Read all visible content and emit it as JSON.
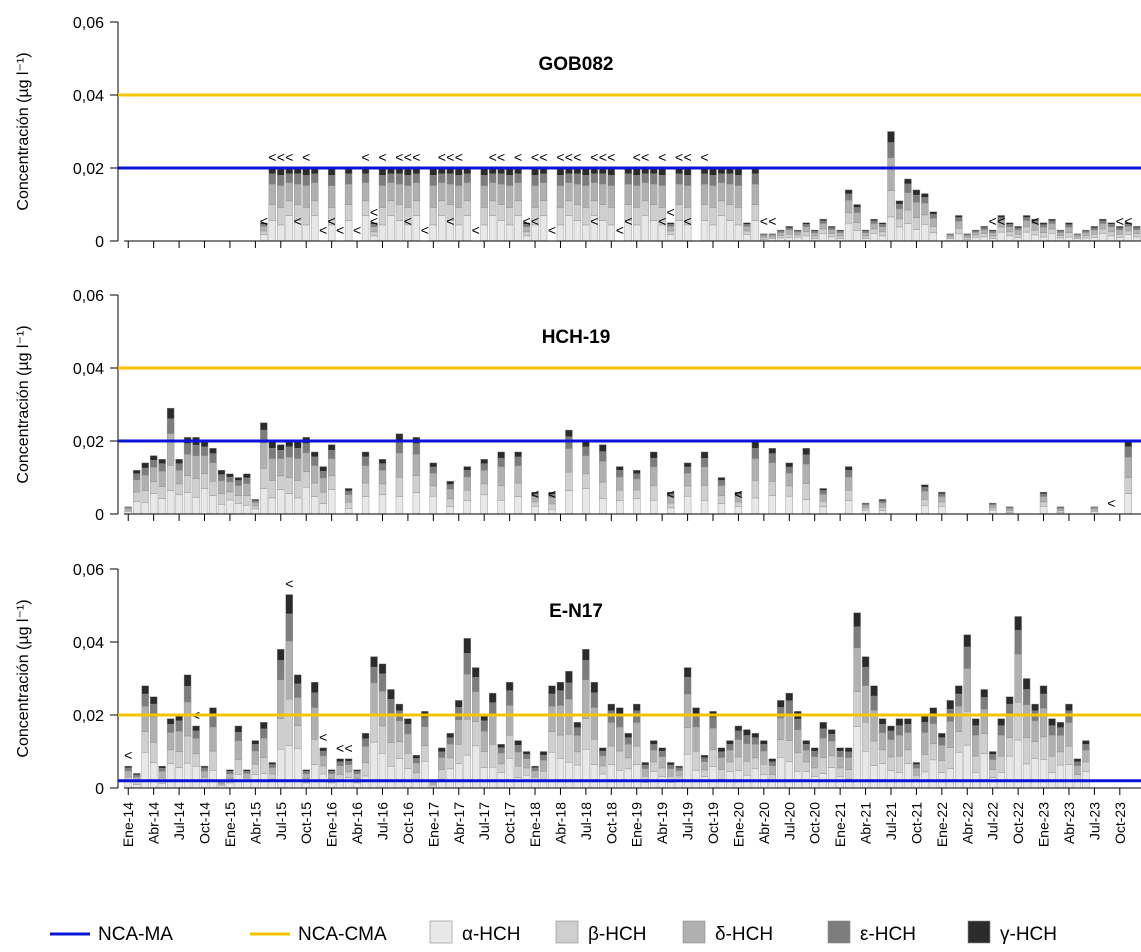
{
  "legend": {
    "ma": "NCA-MA",
    "cma": "NCA-CMA"
  },
  "chart_data": {
    "type": "bar",
    "stacked": true,
    "ylabel": "Concentración (µg l⁻¹)",
    "yticks": [
      "0",
      "0,02",
      "0,04",
      "0,06"
    ],
    "ylim": [
      0,
      0.06
    ],
    "x_tick_labels": [
      "Ene-14",
      "Abr-14",
      "Jul-14",
      "Oct-14",
      "Ene-15",
      "Abr-15",
      "Jul-15",
      "Oct-15",
      "Ene-16",
      "Abr-16",
      "Jul-16",
      "Oct-16",
      "Ene-17",
      "Abr-17",
      "Jul-17",
      "Oct-17",
      "Ene-18",
      "Abr-18",
      "Jul-18",
      "Oct-18",
      "Ene-19",
      "Abr-19",
      "Jul-19",
      "Oct-19",
      "Ene-20",
      "Abr-20",
      "Jul-20",
      "Oct-20",
      "Ene-21",
      "Abr-21",
      "Jul-21",
      "Oct-21",
      "Ene-22",
      "Abr-22",
      "Jul-22",
      "Oct-22",
      "Ene-23",
      "Abr-23",
      "Jul-23",
      "Oct-23"
    ],
    "series_names": [
      "α-HCH",
      "β-HCH",
      "δ-HCH",
      "ε-HCH",
      "γ-HCH"
    ],
    "colors": {
      "alpha": "#e8e8e8",
      "beta": "#cfcfcf",
      "delta": "#b0b0b0",
      "epsilon": "#7d7d7d",
      "gamma": "#2b2b2b",
      "ma": "#0a14d6",
      "cma": "#f5c400"
    },
    "panels": [
      {
        "title": "GOB082",
        "ma": 0.02,
        "cma": 0.04,
        "lt_marker": "<",
        "totals": [
          0,
          0,
          0,
          0,
          0,
          0,
          0,
          0,
          0,
          0,
          0,
          0,
          0,
          0,
          0,
          0,
          0.005,
          0.02,
          0.02,
          0.02,
          0.02,
          0.02,
          0.02,
          0,
          0.02,
          0,
          0.02,
          0,
          0.02,
          0.005,
          0.02,
          0.02,
          0.02,
          0.02,
          0.02,
          0,
          0.02,
          0.02,
          0.02,
          0.02,
          0.02,
          0,
          0.02,
          0.02,
          0.02,
          0.02,
          0.02,
          0.005,
          0.02,
          0.02,
          0,
          0.02,
          0.02,
          0.02,
          0.02,
          0.02,
          0.02,
          0.02,
          0,
          0.02,
          0.02,
          0.02,
          0.02,
          0.02,
          0.005,
          0.02,
          0.02,
          0,
          0.02,
          0.02,
          0.02,
          0.02,
          0.02,
          0.005,
          0.02,
          0.002,
          0.002,
          0.003,
          0.004,
          0.003,
          0.005,
          0.003,
          0.006,
          0.004,
          0.003,
          0.014,
          0.01,
          0.003,
          0.006,
          0.005,
          0.03,
          0.011,
          0.017,
          0.014,
          0.013,
          0.008,
          0,
          0.002,
          0.007,
          0.002,
          0.003,
          0.004,
          0.003,
          0.007,
          0.005,
          0.004,
          0.007,
          0.006,
          0.005,
          0.006,
          0.003,
          0.005,
          0.002,
          0.003,
          0.004,
          0.006,
          0.005,
          0.004,
          0.005,
          0.004,
          0.007,
          0.006,
          0.004,
          0.003,
          0.004,
          0.007,
          0.003,
          0.004,
          0.002,
          0.002,
          0.002,
          0.004,
          0.003,
          0.005,
          0.008,
          0,
          0.007,
          0.005,
          0.003,
          0.002
        ],
        "lt_upper": [
          17,
          18,
          19,
          21,
          23,
          25,
          27,
          28,
          29,
          30,
          32,
          33,
          34,
          35,
          37,
          38,
          39,
          41,
          43,
          44,
          46,
          48,
          49,
          50,
          51,
          52,
          53,
          55,
          56,
          57,
          58,
          60,
          61,
          63,
          64,
          65,
          66,
          68
        ],
        "lt_lower": [
          16,
          20,
          24,
          29,
          33,
          38,
          47,
          48,
          55,
          59,
          63,
          66,
          75,
          76,
          102,
          103,
          107,
          117,
          118,
          144
        ]
      },
      {
        "title": "HCH-19",
        "ma": 0.02,
        "cma": 0.04,
        "lt_marker": "<",
        "totals": [
          0.002,
          0.012,
          0.014,
          0.016,
          0.015,
          0.029,
          0.015,
          0.021,
          0.021,
          0.02,
          0.018,
          0.012,
          0.011,
          0.01,
          0.011,
          0.004,
          0.025,
          0.02,
          0.019,
          0.02,
          0.02,
          0.021,
          0.017,
          0.013,
          0.019,
          0,
          0.007,
          0,
          0.017,
          0,
          0.015,
          0,
          0.022,
          0,
          0.021,
          0,
          0.014,
          0,
          0.009,
          0,
          0.013,
          0,
          0.015,
          0,
          0.017,
          0,
          0.017,
          0,
          0.006,
          0,
          0.006,
          0,
          0.023,
          0,
          0.02,
          0,
          0.019,
          0,
          0.013,
          0,
          0.012,
          0,
          0.017,
          0,
          0.006,
          0,
          0.014,
          0,
          0.017,
          0,
          0.01,
          0,
          0.006,
          0,
          0.02,
          0,
          0.018,
          0,
          0.014,
          0,
          0.018,
          0,
          0.007,
          0,
          0,
          0.013,
          0,
          0.003,
          0,
          0.004,
          0,
          0,
          0,
          0,
          0.008,
          0,
          0.006,
          0,
          0,
          0,
          0,
          0,
          0.003,
          0,
          0.002,
          0,
          0,
          0,
          0.006,
          0,
          0.002,
          0,
          0,
          0,
          0.002,
          0,
          0,
          0,
          0.02,
          0,
          0,
          0.008,
          0,
          0.008
        ],
        "lt_upper": [
          116
        ],
        "lt_lower": [
          48,
          50,
          64,
          72
        ]
      },
      {
        "title": "E-N17",
        "ma": 0.002,
        "cma": 0.02,
        "lt_marker": "<",
        "totals": [
          0.006,
          0.004,
          0.028,
          0.025,
          0.006,
          0.019,
          0.02,
          0.031,
          0.017,
          0.006,
          0.022,
          0.002,
          0.005,
          0.017,
          0.005,
          0.013,
          0.018,
          0.007,
          0.038,
          0.053,
          0.031,
          0.005,
          0.029,
          0.011,
          0.005,
          0.008,
          0.008,
          0.005,
          0.015,
          0.036,
          0.034,
          0.027,
          0.023,
          0.019,
          0.009,
          0.021,
          0.002,
          0.011,
          0.015,
          0.024,
          0.041,
          0.033,
          0.02,
          0.026,
          0.012,
          0.029,
          0.013,
          0.01,
          0.006,
          0.01,
          0.028,
          0.029,
          0.032,
          0.018,
          0.038,
          0.029,
          0.011,
          0.023,
          0.022,
          0.015,
          0.023,
          0.007,
          0.013,
          0.011,
          0.007,
          0.006,
          0.033,
          0.022,
          0.009,
          0.021,
          0.011,
          0.013,
          0.017,
          0.016,
          0.015,
          0.013,
          0.008,
          0.024,
          0.026,
          0.021,
          0.013,
          0.011,
          0.018,
          0.016,
          0.011,
          0.011,
          0.048,
          0.036,
          0.028,
          0.019,
          0.017,
          0.019,
          0.019,
          0.007,
          0.02,
          0.022,
          0.015,
          0.024,
          0.028,
          0.042,
          0.019,
          0.027,
          0.01,
          0.019,
          0.025,
          0.047,
          0.03,
          0.023,
          0.028,
          0.019,
          0.018,
          0.023,
          0.008,
          0.013
        ],
        "lt_upper": [
          0,
          8,
          19,
          23,
          25,
          26
        ],
        "lt_lower": []
      }
    ]
  }
}
